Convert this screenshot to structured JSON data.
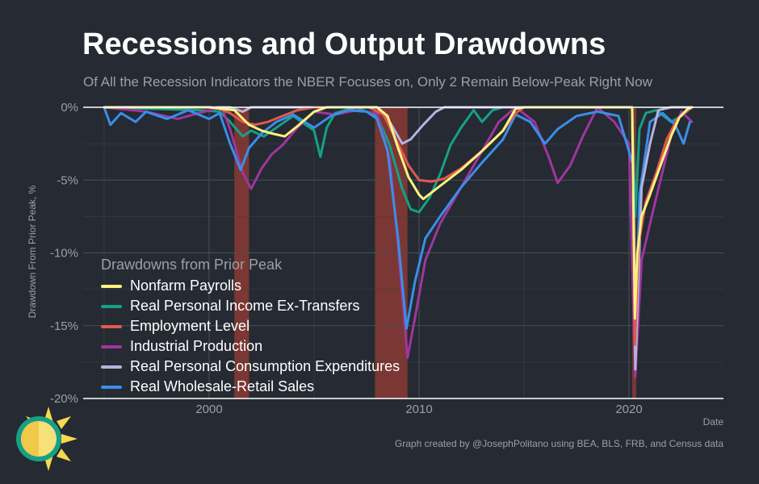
{
  "header": {
    "title": "Recessions and Output Drawdowns",
    "subtitle": "Of All the Recession Indicators the NBER Focuses on, Only 2 Remain Below-Peak Right Now"
  },
  "footer": {
    "caption": "Graph created by @JosephPolitano using BEA, BLS, FRB, and Census data"
  },
  "chart_data": {
    "type": "line",
    "title": "Recessions and Output Drawdowns",
    "subtitle": "Of All the Recession Indicators the NBER Focuses on, Only 2 Remain Below-Peak Right Now",
    "xlabel": "Date",
    "ylabel": "Drawdown From Prior Peak, %",
    "xlim": [
      1994.0,
      2024.5
    ],
    "ylim": [
      -20,
      0
    ],
    "x_ticks": [
      2000,
      2010,
      2020
    ],
    "x_tick_labels": [
      "2000",
      "2010",
      "2020"
    ],
    "y_ticks": [
      0,
      -5,
      -10,
      -15,
      -20
    ],
    "y_tick_labels": [
      "0%",
      "-5%",
      "-10%",
      "-15%",
      "-20%"
    ],
    "grid": true,
    "legend_title": "Drawdowns from Prior Peak",
    "legend_position": "bottom-left",
    "recessions": [
      {
        "start": 2001.2,
        "end": 2001.9
      },
      {
        "start": 2007.9,
        "end": 2009.45
      },
      {
        "start": 2020.15,
        "end": 2020.35
      }
    ],
    "recession_color": "#8b3a35",
    "series": [
      {
        "name": "Nonfarm Payrolls",
        "color": "#fdf27f",
        "points": [
          [
            1995.0,
            0
          ],
          [
            2000.0,
            0
          ],
          [
            2001.2,
            -0.2
          ],
          [
            2001.9,
            -1.2
          ],
          [
            2002.5,
            -1.6
          ],
          [
            2003.0,
            -1.8
          ],
          [
            2003.6,
            -2.0
          ],
          [
            2004.2,
            -1.3
          ],
          [
            2005.0,
            -0.3
          ],
          [
            2005.6,
            0
          ],
          [
            2008.0,
            0
          ],
          [
            2008.5,
            -0.6
          ],
          [
            2009.0,
            -2.8
          ],
          [
            2009.5,
            -4.8
          ],
          [
            2010.0,
            -6.0
          ],
          [
            2010.2,
            -6.3
          ],
          [
            2011.0,
            -5.4
          ],
          [
            2012.0,
            -4.3
          ],
          [
            2013.0,
            -3.0
          ],
          [
            2014.0,
            -1.6
          ],
          [
            2014.6,
            -0.1
          ],
          [
            2015.0,
            0
          ],
          [
            2020.15,
            0
          ],
          [
            2020.28,
            -14.5
          ],
          [
            2020.4,
            -10.0
          ],
          [
            2020.6,
            -7.5
          ],
          [
            2021.0,
            -6.0
          ],
          [
            2021.5,
            -4.0
          ],
          [
            2022.0,
            -2.0
          ],
          [
            2022.4,
            -0.7
          ],
          [
            2022.8,
            -0.1
          ],
          [
            2023.0,
            0
          ]
        ]
      },
      {
        "name": "Real Personal Income Ex-Transfers",
        "color": "#16a085",
        "points": [
          [
            1995.0,
            0
          ],
          [
            1999.5,
            -0.2
          ],
          [
            2000.5,
            -0.3
          ],
          [
            2001.0,
            -1.0
          ],
          [
            2001.6,
            -2.0
          ],
          [
            2002.0,
            -1.6
          ],
          [
            2002.6,
            -2.0
          ],
          [
            2003.2,
            -1.4
          ],
          [
            2004.0,
            -0.6
          ],
          [
            2004.6,
            -1.2
          ],
          [
            2005.0,
            -1.6
          ],
          [
            2005.3,
            -3.4
          ],
          [
            2005.6,
            -1.4
          ],
          [
            2006.0,
            -0.4
          ],
          [
            2007.0,
            0
          ],
          [
            2008.0,
            -0.6
          ],
          [
            2008.6,
            -2.6
          ],
          [
            2009.2,
            -5.6
          ],
          [
            2009.6,
            -7.0
          ],
          [
            2010.0,
            -7.2
          ],
          [
            2010.5,
            -6.2
          ],
          [
            2011.0,
            -4.6
          ],
          [
            2011.5,
            -2.6
          ],
          [
            2012.0,
            -1.4
          ],
          [
            2012.6,
            -0.2
          ],
          [
            2013.0,
            -1.0
          ],
          [
            2013.5,
            -0.2
          ],
          [
            2014.0,
            0
          ],
          [
            2020.15,
            0
          ],
          [
            2020.3,
            -7.5
          ],
          [
            2020.5,
            -1.5
          ],
          [
            2020.8,
            -0.4
          ],
          [
            2021.3,
            -0.2
          ],
          [
            2022.0,
            -1.0
          ],
          [
            2022.5,
            -0.6
          ],
          [
            2023.0,
            0
          ]
        ]
      },
      {
        "name": "Employment Level",
        "color": "#e05a4f",
        "points": [
          [
            1995.0,
            0
          ],
          [
            2000.3,
            0
          ],
          [
            2001.0,
            -0.4
          ],
          [
            2001.6,
            -1.0
          ],
          [
            2002.2,
            -1.2
          ],
          [
            2002.8,
            -1.0
          ],
          [
            2003.5,
            -0.6
          ],
          [
            2004.2,
            -0.2
          ],
          [
            2005.0,
            0
          ],
          [
            2007.6,
            0
          ],
          [
            2008.3,
            -0.5
          ],
          [
            2009.0,
            -2.5
          ],
          [
            2009.5,
            -4.0
          ],
          [
            2010.0,
            -5.0
          ],
          [
            2010.6,
            -5.1
          ],
          [
            2011.2,
            -4.9
          ],
          [
            2012.0,
            -4.2
          ],
          [
            2013.0,
            -3.0
          ],
          [
            2014.0,
            -1.6
          ],
          [
            2014.6,
            -0.4
          ],
          [
            2015.0,
            0
          ],
          [
            2020.15,
            0
          ],
          [
            2020.28,
            -16.3
          ],
          [
            2020.45,
            -9.5
          ],
          [
            2020.8,
            -6.5
          ],
          [
            2021.3,
            -4.5
          ],
          [
            2021.8,
            -2.2
          ],
          [
            2022.3,
            -0.8
          ],
          [
            2022.8,
            -0.2
          ],
          [
            2023.0,
            0
          ]
        ]
      },
      {
        "name": "Industrial Production",
        "color": "#a0369c",
        "points": [
          [
            1995.0,
            0
          ],
          [
            1997.0,
            -0.3
          ],
          [
            1998.5,
            -0.8
          ],
          [
            1999.5,
            -0.4
          ],
          [
            2000.6,
            0
          ],
          [
            2001.0,
            -1.5
          ],
          [
            2001.6,
            -4.5
          ],
          [
            2002.0,
            -5.6
          ],
          [
            2002.5,
            -4.2
          ],
          [
            2003.0,
            -3.2
          ],
          [
            2003.5,
            -2.6
          ],
          [
            2004.2,
            -1.4
          ],
          [
            2005.0,
            -0.3
          ],
          [
            2006.0,
            -0.5
          ],
          [
            2007.0,
            -0.2
          ],
          [
            2008.0,
            -0.4
          ],
          [
            2008.6,
            -3.5
          ],
          [
            2009.0,
            -9.5
          ],
          [
            2009.45,
            -17.2
          ],
          [
            2009.8,
            -14.5
          ],
          [
            2010.3,
            -10.5
          ],
          [
            2011.0,
            -8.0
          ],
          [
            2012.0,
            -5.5
          ],
          [
            2013.0,
            -3.0
          ],
          [
            2013.8,
            -1.0
          ],
          [
            2014.6,
            0
          ],
          [
            2015.5,
            -1.0
          ],
          [
            2016.2,
            -3.5
          ],
          [
            2016.6,
            -5.2
          ],
          [
            2017.2,
            -4.0
          ],
          [
            2017.8,
            -2.0
          ],
          [
            2018.5,
            0
          ],
          [
            2019.3,
            -1.0
          ],
          [
            2020.0,
            -2.5
          ],
          [
            2020.3,
            -18.5
          ],
          [
            2020.6,
            -10.5
          ],
          [
            2021.0,
            -8.0
          ],
          [
            2021.5,
            -5.0
          ],
          [
            2022.0,
            -2.0
          ],
          [
            2022.5,
            -0.3
          ],
          [
            2023.0,
            -1.0
          ]
        ]
      },
      {
        "name": "Real Personal Consumption Expenditures",
        "color": "#b4b4dc",
        "points": [
          [
            1995.0,
            0
          ],
          [
            2001.0,
            0
          ],
          [
            2001.6,
            -0.3
          ],
          [
            2002.0,
            0
          ],
          [
            2008.0,
            0
          ],
          [
            2008.6,
            -1.0
          ],
          [
            2009.2,
            -2.5
          ],
          [
            2009.6,
            -2.2
          ],
          [
            2010.2,
            -1.2
          ],
          [
            2010.8,
            -0.3
          ],
          [
            2011.2,
            0
          ],
          [
            2020.15,
            0
          ],
          [
            2020.3,
            -18.0
          ],
          [
            2020.6,
            -5.5
          ],
          [
            2021.0,
            -2.5
          ],
          [
            2021.4,
            -0.2
          ],
          [
            2022.0,
            0
          ],
          [
            2023.0,
            0
          ]
        ]
      },
      {
        "name": "Real Wholesale-Retail Sales",
        "color": "#3b8ee8",
        "points": [
          [
            1995.0,
            0
          ],
          [
            1995.3,
            -1.2
          ],
          [
            1995.8,
            -0.4
          ],
          [
            1996.5,
            -1.0
          ],
          [
            1997.0,
            -0.3
          ],
          [
            1998.0,
            -0.8
          ],
          [
            1999.0,
            -0.2
          ],
          [
            2000.0,
            -0.8
          ],
          [
            2000.5,
            -0.4
          ],
          [
            2001.0,
            -2.5
          ],
          [
            2001.5,
            -4.3
          ],
          [
            2001.9,
            -2.8
          ],
          [
            2002.5,
            -1.8
          ],
          [
            2003.2,
            -1.0
          ],
          [
            2004.0,
            -0.5
          ],
          [
            2005.0,
            -1.4
          ],
          [
            2005.8,
            -0.6
          ],
          [
            2006.6,
            -0.2
          ],
          [
            2007.5,
            -0.3
          ],
          [
            2008.0,
            -0.8
          ],
          [
            2008.5,
            -3.0
          ],
          [
            2009.0,
            -9.0
          ],
          [
            2009.4,
            -15.2
          ],
          [
            2009.8,
            -12.0
          ],
          [
            2010.3,
            -9.0
          ],
          [
            2011.0,
            -7.5
          ],
          [
            2012.0,
            -5.5
          ],
          [
            2013.0,
            -3.8
          ],
          [
            2014.0,
            -2.2
          ],
          [
            2014.6,
            -0.5
          ],
          [
            2015.3,
            -1.0
          ],
          [
            2016.0,
            -2.5
          ],
          [
            2016.6,
            -1.5
          ],
          [
            2017.5,
            -0.6
          ],
          [
            2018.5,
            -0.3
          ],
          [
            2019.5,
            -0.6
          ],
          [
            2020.2,
            -4.0
          ],
          [
            2020.3,
            -16.0
          ],
          [
            2020.5,
            -6.0
          ],
          [
            2021.0,
            -1.0
          ],
          [
            2021.6,
            -0.4
          ],
          [
            2022.2,
            -1.2
          ],
          [
            2022.6,
            -2.5
          ],
          [
            2022.9,
            -1.0
          ]
        ]
      }
    ]
  }
}
